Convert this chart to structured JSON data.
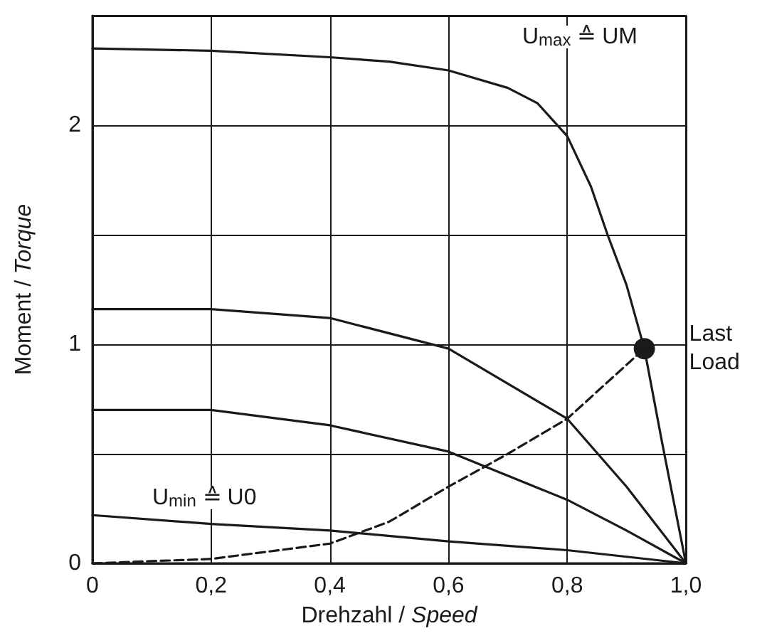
{
  "chart_data": {
    "type": "line",
    "xlabel": "Drehzahl / Speed",
    "ylabel": "Moment / Torque",
    "xlim": [
      0,
      1
    ],
    "ylim": [
      0,
      2.5
    ],
    "xticks": [
      {
        "value": 0,
        "label": "0"
      },
      {
        "value": 0.2,
        "label": "0,2"
      },
      {
        "value": 0.4,
        "label": "0,4"
      },
      {
        "value": 0.6,
        "label": "0,6"
      },
      {
        "value": 0.8,
        "label": "0,8"
      },
      {
        "value": 1,
        "label": "1,0"
      }
    ],
    "yticks": [
      0,
      {
        "value": 0.5,
        "label": null
      },
      1,
      {
        "value": 1.5,
        "label": null
      },
      2,
      {
        "value": 2.5,
        "label": null
      }
    ],
    "grid": true,
    "legend": false,
    "marker": "none",
    "series": [
      {
        "color": "#1a1a1a",
        "line_style": "solid",
        "x": [
          0,
          0.2,
          0.4,
          0.5,
          0.6,
          0.7,
          0.75,
          0.8,
          0.84,
          0.868,
          0.9,
          0.93,
          0.96,
          1
        ],
        "values": [
          2.35,
          2.34,
          2.31,
          2.29,
          2.25,
          2.17,
          2.1,
          1.95,
          1.72,
          1.5,
          1.27,
          0.98,
          0.55,
          0
        ]
      },
      {
        "color": "#1a1a1a",
        "line_style": "solid",
        "x": [
          0,
          0.2,
          0.4,
          0.6,
          0.8,
          0.9,
          1
        ],
        "values": [
          1.16,
          1.16,
          1.12,
          0.98,
          0.66,
          0.35,
          0
        ]
      },
      {
        "color": "#1a1a1a",
        "line_style": "solid",
        "x": [
          0,
          0.2,
          0.4,
          0.6,
          0.8,
          0.9,
          1
        ],
        "values": [
          0.7,
          0.7,
          0.63,
          0.51,
          0.29,
          0.15,
          0
        ]
      },
      {
        "color": "#1a1a1a",
        "line_style": "solid",
        "x": [
          0,
          0.2,
          0.4,
          0.6,
          0.8,
          1
        ],
        "values": [
          0.22,
          0.18,
          0.15,
          0.1,
          0.06,
          0
        ]
      },
      {
        "color": "#1a1a1a",
        "line_style": "dashed",
        "x": [
          0,
          0.2,
          0.4,
          0.5,
          0.6,
          0.7,
          0.8,
          0.93
        ],
        "values": [
          0,
          0.02,
          0.09,
          0.19,
          0.35,
          0.5,
          0.66,
          0.98
        ]
      },
      {
        "type": "scatter",
        "name": "Last Load",
        "color": "#1a1a1a",
        "marker": "circle",
        "x": [
          0.93
        ],
        "values": [
          0.98
        ]
      }
    ],
    "annotations": [
      "U$_{max}$ ≙ UM",
      "U$_{min}$ ≙ U0"
    ]
  }
}
